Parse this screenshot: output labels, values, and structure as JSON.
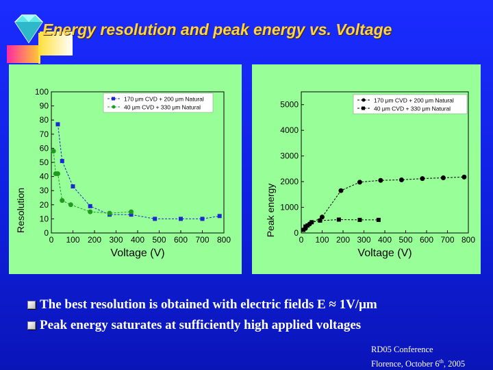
{
  "slide": {
    "title": "Energy resolution and peak energy vs. Voltage",
    "bullets": [
      "The best resolution is obtained with electric fields E ≈ 1V/μm",
      "Peak energy saturates at sufficiently high applied voltages"
    ],
    "footer": {
      "line1": "RD05 Conference",
      "line2_prefix": "Florence, October 6",
      "line2_sup": "th",
      "line2_suffix": ", 2005"
    }
  },
  "colors": {
    "background": "#1020e0",
    "title": "#ffd24a",
    "panel": "#98ff98",
    "series_blue": "#1a2ad0",
    "series_green": "#1f9b1f",
    "series_black": "#000000"
  },
  "icons": [
    "diamond-logo-icon",
    "bullet-square-icon"
  ],
  "chart_data": [
    {
      "type": "scatter",
      "title": "",
      "xlabel": "Voltage (V)",
      "ylabel": "Resolution",
      "xlim": [
        0,
        800
      ],
      "ylim": [
        0,
        100
      ],
      "x_ticks": [
        "0",
        "100",
        "200",
        "300",
        "400",
        "500",
        "600",
        "700",
        "800"
      ],
      "y_ticks": [
        "0",
        "10",
        "20",
        "30",
        "40",
        "50",
        "60",
        "70",
        "80",
        "90",
        "100"
      ],
      "legend_position": "top-right",
      "series": [
        {
          "name": "170 μm CVD + 200 μm Natural",
          "marker": "square",
          "color": "#1a2ad0",
          "x": [
            30,
            50,
            100,
            180,
            270,
            370,
            480,
            600,
            700,
            780
          ],
          "y": [
            77,
            51,
            33,
            19,
            13,
            13,
            10,
            10,
            10,
            12
          ]
        },
        {
          "name": "40 μm CVD + 330 μm Natural",
          "marker": "circle",
          "color": "#1f9b1f",
          "x": [
            10,
            20,
            30,
            50,
            90,
            180,
            270,
            370
          ],
          "y": [
            58,
            42,
            42,
            23,
            20,
            15,
            14,
            15
          ]
        }
      ]
    },
    {
      "type": "scatter",
      "title": "",
      "xlabel": "Voltage (V)",
      "ylabel": "Peak energy",
      "xlim": [
        0,
        800
      ],
      "ylim": [
        0,
        5500
      ],
      "x_ticks": [
        "0",
        "100",
        "200",
        "300",
        "400",
        "500",
        "600",
        "700",
        "800"
      ],
      "y_ticks": [
        "0",
        "1000",
        "2000",
        "3000",
        "4000",
        "5000"
      ],
      "legend_position": "top-right",
      "series": [
        {
          "name": "170 μm CVD + 200 μm Natural",
          "marker": "circle",
          "color": "#000000",
          "x": [
            20,
            40,
            100,
            190,
            280,
            380,
            480,
            580,
            680,
            780
          ],
          "y": [
            180,
            350,
            620,
            1650,
            1980,
            2050,
            2070,
            2120,
            2150,
            2180
          ]
        },
        {
          "name": "40 μm CVD + 330 μm Natural",
          "marker": "square",
          "color": "#000000",
          "x": [
            10,
            20,
            30,
            50,
            90,
            180,
            280,
            370
          ],
          "y": [
            120,
            250,
            290,
            420,
            480,
            520,
            510,
            510
          ]
        }
      ]
    }
  ]
}
